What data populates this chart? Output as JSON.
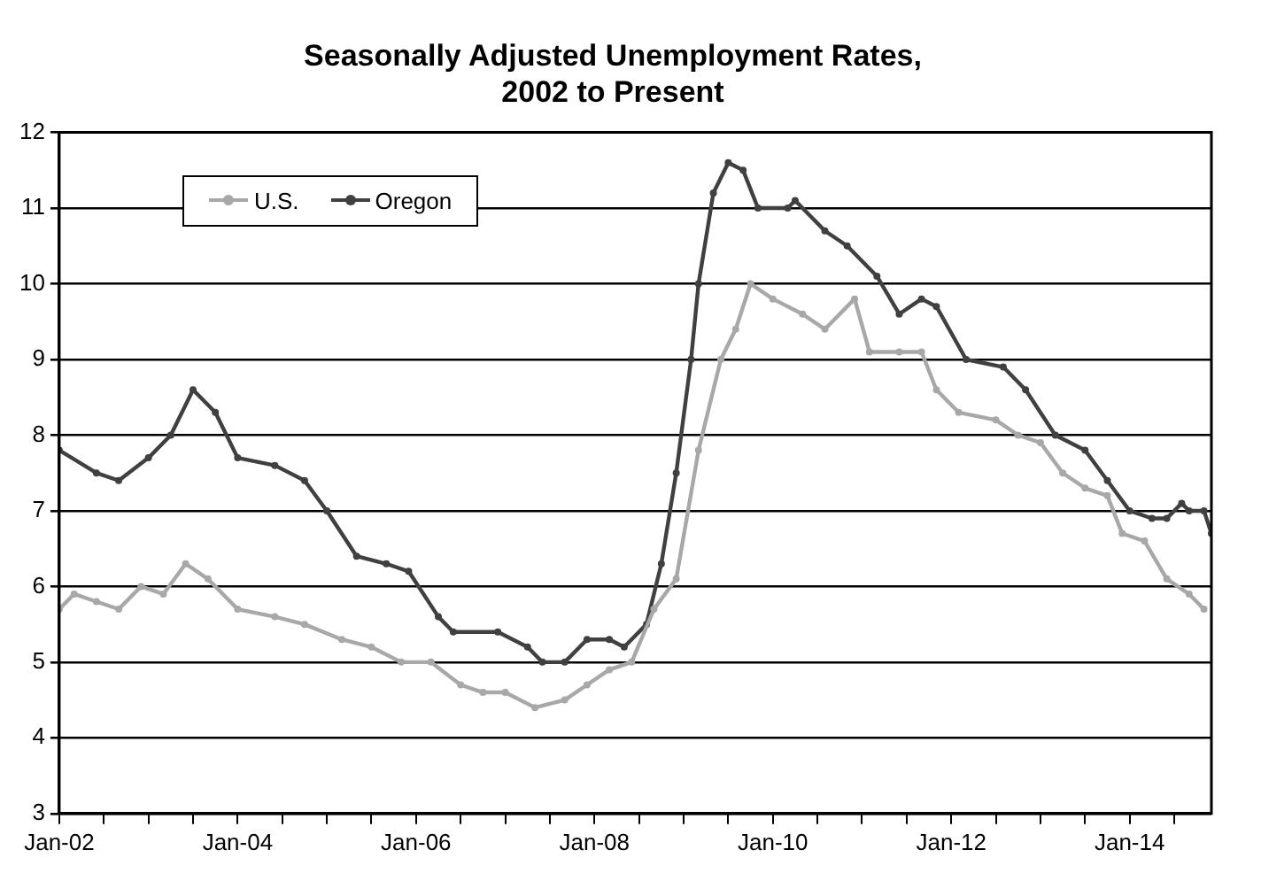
{
  "chart_data": {
    "type": "line",
    "title": "Seasonally Adjusted Unemployment Rates,\n2002 to Present",
    "xlim": [
      "2002-01",
      "2014-12"
    ],
    "xticks": [
      {
        "value": "2002-01",
        "label": "Jan-02"
      },
      {
        "value": "2002-07",
        "label": null
      },
      {
        "value": "2003-01",
        "label": null
      },
      {
        "value": "2003-07",
        "label": null
      },
      {
        "value": "2004-01",
        "label": "Jan-04"
      },
      {
        "value": "2004-07",
        "label": null
      },
      {
        "value": "2005-01",
        "label": null
      },
      {
        "value": "2005-07",
        "label": null
      },
      {
        "value": "2006-01",
        "label": "Jan-06"
      },
      {
        "value": "2006-07",
        "label": null
      },
      {
        "value": "2007-01",
        "label": null
      },
      {
        "value": "2007-07",
        "label": null
      },
      {
        "value": "2008-01",
        "label": "Jan-08"
      },
      {
        "value": "2008-07",
        "label": null
      },
      {
        "value": "2009-01",
        "label": null
      },
      {
        "value": "2009-07",
        "label": null
      },
      {
        "value": "2010-01",
        "label": "Jan-10"
      },
      {
        "value": "2010-07",
        "label": null
      },
      {
        "value": "2011-01",
        "label": null
      },
      {
        "value": "2011-07",
        "label": null
      },
      {
        "value": "2012-01",
        "label": "Jan-12"
      },
      {
        "value": "2012-07",
        "label": null
      },
      {
        "value": "2013-01",
        "label": null
      },
      {
        "value": "2013-07",
        "label": null
      },
      {
        "value": "2014-01",
        "label": "Jan-14"
      },
      {
        "value": "2014-07",
        "label": null
      }
    ],
    "ylim": [
      3,
      12
    ],
    "yticks": [
      3,
      4,
      5,
      6,
      7,
      8,
      9,
      10,
      11,
      12
    ],
    "grid": "y",
    "legend": "top left",
    "marker": "circle",
    "line_style": "solid",
    "series": [
      {
        "name": "U.S.",
        "color": "#a8a8a8",
        "x": [
          "2002-01",
          "2002-03",
          "2002-06",
          "2002-09",
          "2002-12",
          "2003-03",
          "2003-06",
          "2003-09",
          "2004-01",
          "2004-06",
          "2004-10",
          "2005-03",
          "2005-07",
          "2005-11",
          "2006-03",
          "2006-07",
          "2006-10",
          "2007-01",
          "2007-05",
          "2007-09",
          "2007-12",
          "2008-03",
          "2008-06",
          "2008-09",
          "2008-12",
          "2009-03",
          "2009-06",
          "2009-08",
          "2009-10",
          "2010-01",
          "2010-05",
          "2010-08",
          "2010-12",
          "2011-02",
          "2011-06",
          "2011-09",
          "2011-11",
          "2012-02",
          "2012-07",
          "2012-10",
          "2013-01",
          "2013-04",
          "2013-07",
          "2013-10",
          "2013-12",
          "2014-03",
          "2014-06",
          "2014-09",
          "2014-11"
        ],
        "values": [
          5.7,
          5.9,
          5.8,
          5.7,
          6.0,
          5.9,
          6.3,
          6.1,
          5.7,
          5.6,
          5.5,
          5.3,
          5.2,
          5.0,
          5.0,
          4.7,
          4.6,
          4.6,
          4.4,
          4.5,
          4.7,
          4.9,
          5.0,
          5.7,
          6.1,
          7.8,
          9.0,
          9.4,
          10.0,
          9.8,
          9.6,
          9.4,
          9.8,
          9.1,
          9.1,
          9.1,
          8.6,
          8.3,
          8.2,
          8.0,
          7.9,
          7.5,
          7.3,
          7.2,
          6.7,
          6.6,
          6.1,
          5.9,
          5.7
        ]
      },
      {
        "name": "Oregon",
        "color": "#404040",
        "x": [
          "2002-01",
          "2002-06",
          "2002-09",
          "2003-01",
          "2003-04",
          "2003-07",
          "2003-10",
          "2004-01",
          "2004-06",
          "2004-10",
          "2005-01",
          "2005-05",
          "2005-09",
          "2005-12",
          "2006-04",
          "2006-06",
          "2006-12",
          "2007-04",
          "2007-06",
          "2007-09",
          "2007-12",
          "2008-03",
          "2008-05",
          "2008-08",
          "2008-10",
          "2008-12",
          "2009-02",
          "2009-03",
          "2009-05",
          "2009-07",
          "2009-09",
          "2009-11",
          "2010-03",
          "2010-04",
          "2010-08",
          "2010-11",
          "2011-03",
          "2011-06",
          "2011-09",
          "2011-11",
          "2012-03",
          "2012-08",
          "2012-11",
          "2013-03",
          "2013-07",
          "2013-10",
          "2014-01",
          "2014-04",
          "2014-06",
          "2014-08",
          "2014-09",
          "2014-11",
          "2014-12"
        ],
        "values": [
          7.8,
          7.5,
          7.4,
          7.7,
          8.0,
          8.6,
          8.3,
          7.7,
          7.6,
          7.4,
          7.0,
          6.4,
          6.3,
          6.2,
          5.6,
          5.4,
          5.4,
          5.2,
          5.0,
          5.0,
          5.3,
          5.3,
          5.2,
          5.5,
          6.3,
          7.5,
          9.0,
          10.0,
          11.2,
          11.6,
          11.5,
          11.0,
          11.0,
          11.1,
          10.7,
          10.5,
          10.1,
          9.6,
          9.8,
          9.7,
          9.0,
          8.9,
          8.6,
          8.0,
          7.8,
          7.4,
          7.0,
          6.9,
          6.9,
          7.1,
          7.0,
          7.0,
          6.7
        ]
      }
    ]
  }
}
